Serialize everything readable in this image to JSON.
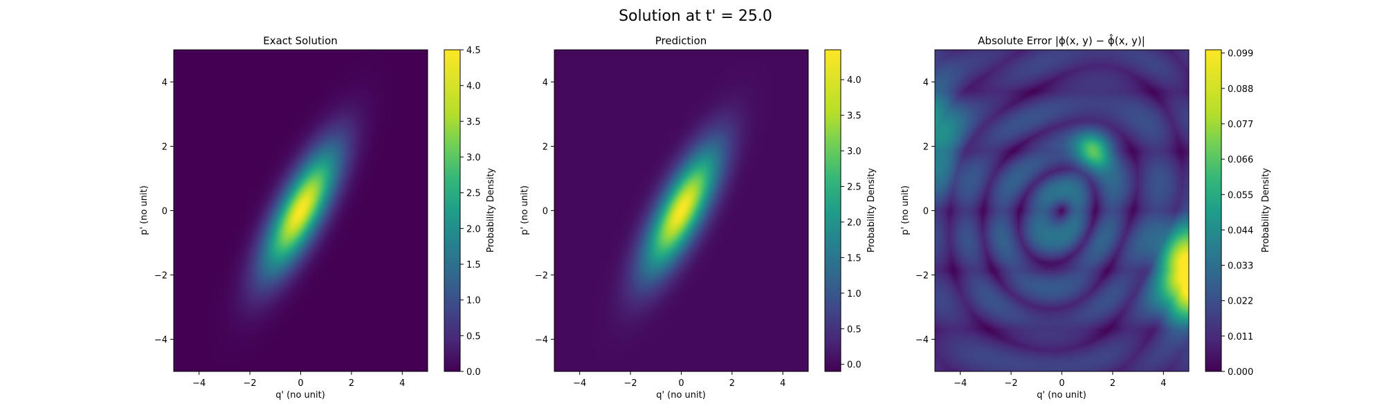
{
  "figure": {
    "title": "Solution at t' = 25.0"
  },
  "chart_data": [
    {
      "type": "heatmap",
      "title": "Exact Solution",
      "xlabel": "q' (no unit)",
      "ylabel": "p' (no unit)",
      "xlim": [
        -5,
        5
      ],
      "ylim": [
        -5,
        5
      ],
      "xticks": [
        -4,
        -2,
        0,
        2,
        4
      ],
      "yticks": [
        -4,
        -2,
        0,
        2,
        4
      ],
      "colormap": "viridis",
      "colorbar": {
        "label": "Probability Density",
        "range": [
          0.0,
          4.5
        ],
        "ticks": [
          "0.0",
          "0.5",
          "1.0",
          "1.5",
          "2.0",
          "2.5",
          "3.0",
          "3.5",
          "4.0",
          "4.5"
        ]
      },
      "field": {
        "kind": "gaussian",
        "peak": 4.5,
        "center": [
          0,
          0
        ],
        "tilt_deg": 55,
        "sigma_major": 1.6,
        "sigma_minor": 0.55
      }
    },
    {
      "type": "heatmap",
      "title": "Prediction",
      "xlabel": "q' (no unit)",
      "ylabel": "p' (no unit)",
      "xlim": [
        -5,
        5
      ],
      "ylim": [
        -5,
        5
      ],
      "xticks": [
        -4,
        -2,
        0,
        2,
        4
      ],
      "yticks": [
        -4,
        -2,
        0,
        2,
        4
      ],
      "colormap": "viridis",
      "colorbar": {
        "label": "Probability Density",
        "range": [
          -0.1,
          4.42
        ],
        "ticks": [
          "0.0",
          "0.5",
          "1.0",
          "1.5",
          "2.0",
          "2.5",
          "3.0",
          "3.5",
          "4.0"
        ]
      },
      "field": {
        "kind": "gaussian",
        "peak": 4.42,
        "center": [
          0,
          0
        ],
        "tilt_deg": 55,
        "sigma_major": 1.6,
        "sigma_minor": 0.55
      }
    },
    {
      "type": "heatmap",
      "title": "Absolute Error |ϕ(x, y) − ϕ̂(x, y)|",
      "xlabel": "q' (no unit)",
      "ylabel": "p' (no unit)",
      "xlim": [
        -5,
        5
      ],
      "ylim": [
        -5,
        5
      ],
      "xticks": [
        -4,
        -2,
        0,
        2,
        4
      ],
      "yticks": [
        -4,
        -2,
        0,
        2,
        4
      ],
      "colormap": "viridis",
      "colorbar": {
        "label": "Probability Density",
        "range": [
          0.0,
          0.1
        ],
        "ticks": [
          "0.000",
          "0.011",
          "0.022",
          "0.033",
          "0.044",
          "0.055",
          "0.066",
          "0.077",
          "0.088",
          "0.099"
        ]
      },
      "field": {
        "kind": "rings",
        "peak": 0.1,
        "hotspots": [
          [
            5,
            -2
          ],
          [
            1.2,
            1.8
          ],
          [
            -1.5,
            -0.5
          ],
          [
            -5,
            2.5
          ]
        ]
      }
    }
  ]
}
